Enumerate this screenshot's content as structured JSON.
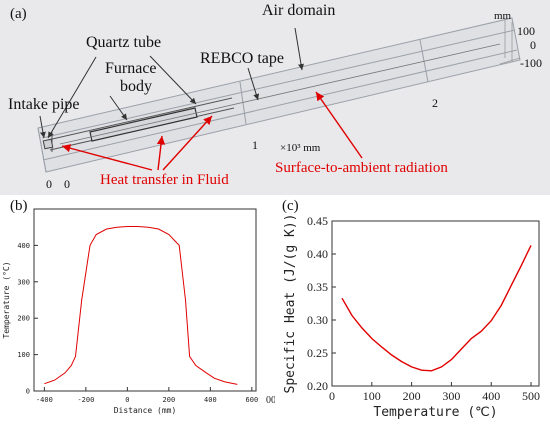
{
  "panel_a": {
    "label": "(a)",
    "unit_mm": "mm",
    "labels": {
      "quartz_tube": "Quartz tube",
      "air_domain": "Air domain",
      "furnace_body_line1": "Furnace",
      "furnace_body_line2": "body",
      "rebco_tape": "REBCO tape",
      "intake_pipe": "Intake pipe",
      "heat_transfer": "Heat transfer in Fluid",
      "surface_radiation": "Surface-to-ambient radiation",
      "scale_text": "×10³ mm"
    },
    "axis_ticks": {
      "x_left_0a": "0",
      "x_left_0b": "0",
      "x_mid_1": "1",
      "x_mid_2": "2",
      "right_100": "100",
      "right_0": "0",
      "right_neg100": "-100"
    },
    "colors": {
      "annotation": "#e00000",
      "background": "#e9e9ec"
    }
  },
  "chart_data": [
    {
      "panel_label": "(b)",
      "type": "line",
      "xlabel": "Distance (mm)",
      "ylabel": "Temperature (°C)",
      "xlim": [
        -450,
        620
      ],
      "ylim": [
        0,
        500
      ],
      "xticks": [
        "-400",
        "-200",
        "0",
        "200",
        "400",
        "600"
      ],
      "yticks": [
        "0",
        "100",
        "200",
        "300",
        "400"
      ],
      "x": [
        -400,
        -350,
        -300,
        -270,
        -250,
        -220,
        -180,
        -150,
        -100,
        -50,
        0,
        50,
        100,
        150,
        200,
        250,
        280,
        300,
        330,
        380,
        420,
        470,
        530
      ],
      "y": [
        20,
        30,
        50,
        70,
        95,
        250,
        400,
        430,
        445,
        450,
        452,
        452,
        450,
        445,
        430,
        400,
        250,
        95,
        70,
        50,
        35,
        25,
        18
      ],
      "line_color": "#e00000",
      "trailing_clipped_tick": "00"
    },
    {
      "panel_label": "(c)",
      "type": "line",
      "xlabel": "Temperature (℃)",
      "ylabel": "Specific Heat (J/(g K))",
      "xlim": [
        0,
        520
      ],
      "ylim": [
        0.2,
        0.45
      ],
      "xticks": [
        "0",
        "100",
        "200",
        "300",
        "400",
        "500"
      ],
      "yticks": [
        "0.20",
        "0.25",
        "0.30",
        "0.35",
        "0.40",
        "0.45"
      ],
      "x": [
        25,
        50,
        75,
        100,
        125,
        150,
        175,
        200,
        225,
        250,
        275,
        300,
        325,
        350,
        375,
        400,
        425,
        450,
        475,
        500
      ],
      "y": [
        0.333,
        0.307,
        0.288,
        0.272,
        0.259,
        0.247,
        0.237,
        0.229,
        0.224,
        0.223,
        0.229,
        0.24,
        0.256,
        0.272,
        0.283,
        0.299,
        0.322,
        0.352,
        0.382,
        0.413
      ],
      "line_color": "#e00000"
    }
  ]
}
